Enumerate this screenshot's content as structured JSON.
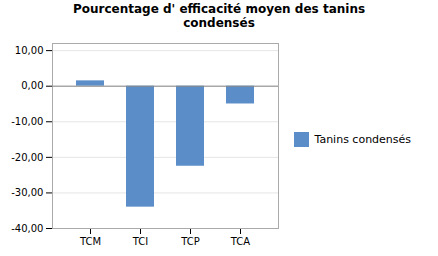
{
  "chart_data": {
    "type": "bar",
    "title": "Pourcentage d' efficacité moyen des tanins\ncondensés",
    "categories": [
      "TCM",
      "TCI",
      "TCP",
      "TCA"
    ],
    "series": [
      {
        "name": "Tanins condensés",
        "color": "#5B8DC8",
        "values": [
          1.5,
          -34.0,
          -22.5,
          -5.0
        ]
      }
    ],
    "ylim": [
      -40,
      12
    ],
    "yticks": [
      {
        "value": -40,
        "label": "-40,00"
      },
      {
        "value": -30,
        "label": "-30,00"
      },
      {
        "value": -20,
        "label": "-20,00"
      },
      {
        "value": -10,
        "label": "-10,00"
      },
      {
        "value": 0,
        "label": "0,00"
      },
      {
        "value": 10,
        "label": "10,00"
      }
    ],
    "grid": true,
    "legend": "right"
  }
}
